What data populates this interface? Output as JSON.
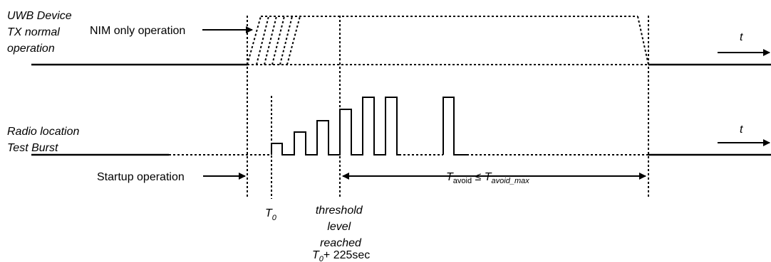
{
  "diagram": {
    "uwb_label": [
      "UWB Device",
      "TX normal",
      "operation"
    ],
    "nim_label": "NIM only operation",
    "radio_label": [
      "Radio location",
      "Test Burst"
    ],
    "startup_label": "Startup operation",
    "t_upper": "t",
    "t_lower": "t",
    "t0_main": "T",
    "t0_sub": "0",
    "threshold_label": [
      "threshold",
      "level",
      "reached"
    ],
    "t0_225_main": "T",
    "t0_225_sub": "0",
    "t0_225_tail": "+ 225sec",
    "tavoid_main": "T",
    "tavoid_sub": "avoid",
    "tavoid_le": " ≤ ",
    "tavoid_max_main": "T",
    "tavoid_max_sub": "avoid_max"
  }
}
